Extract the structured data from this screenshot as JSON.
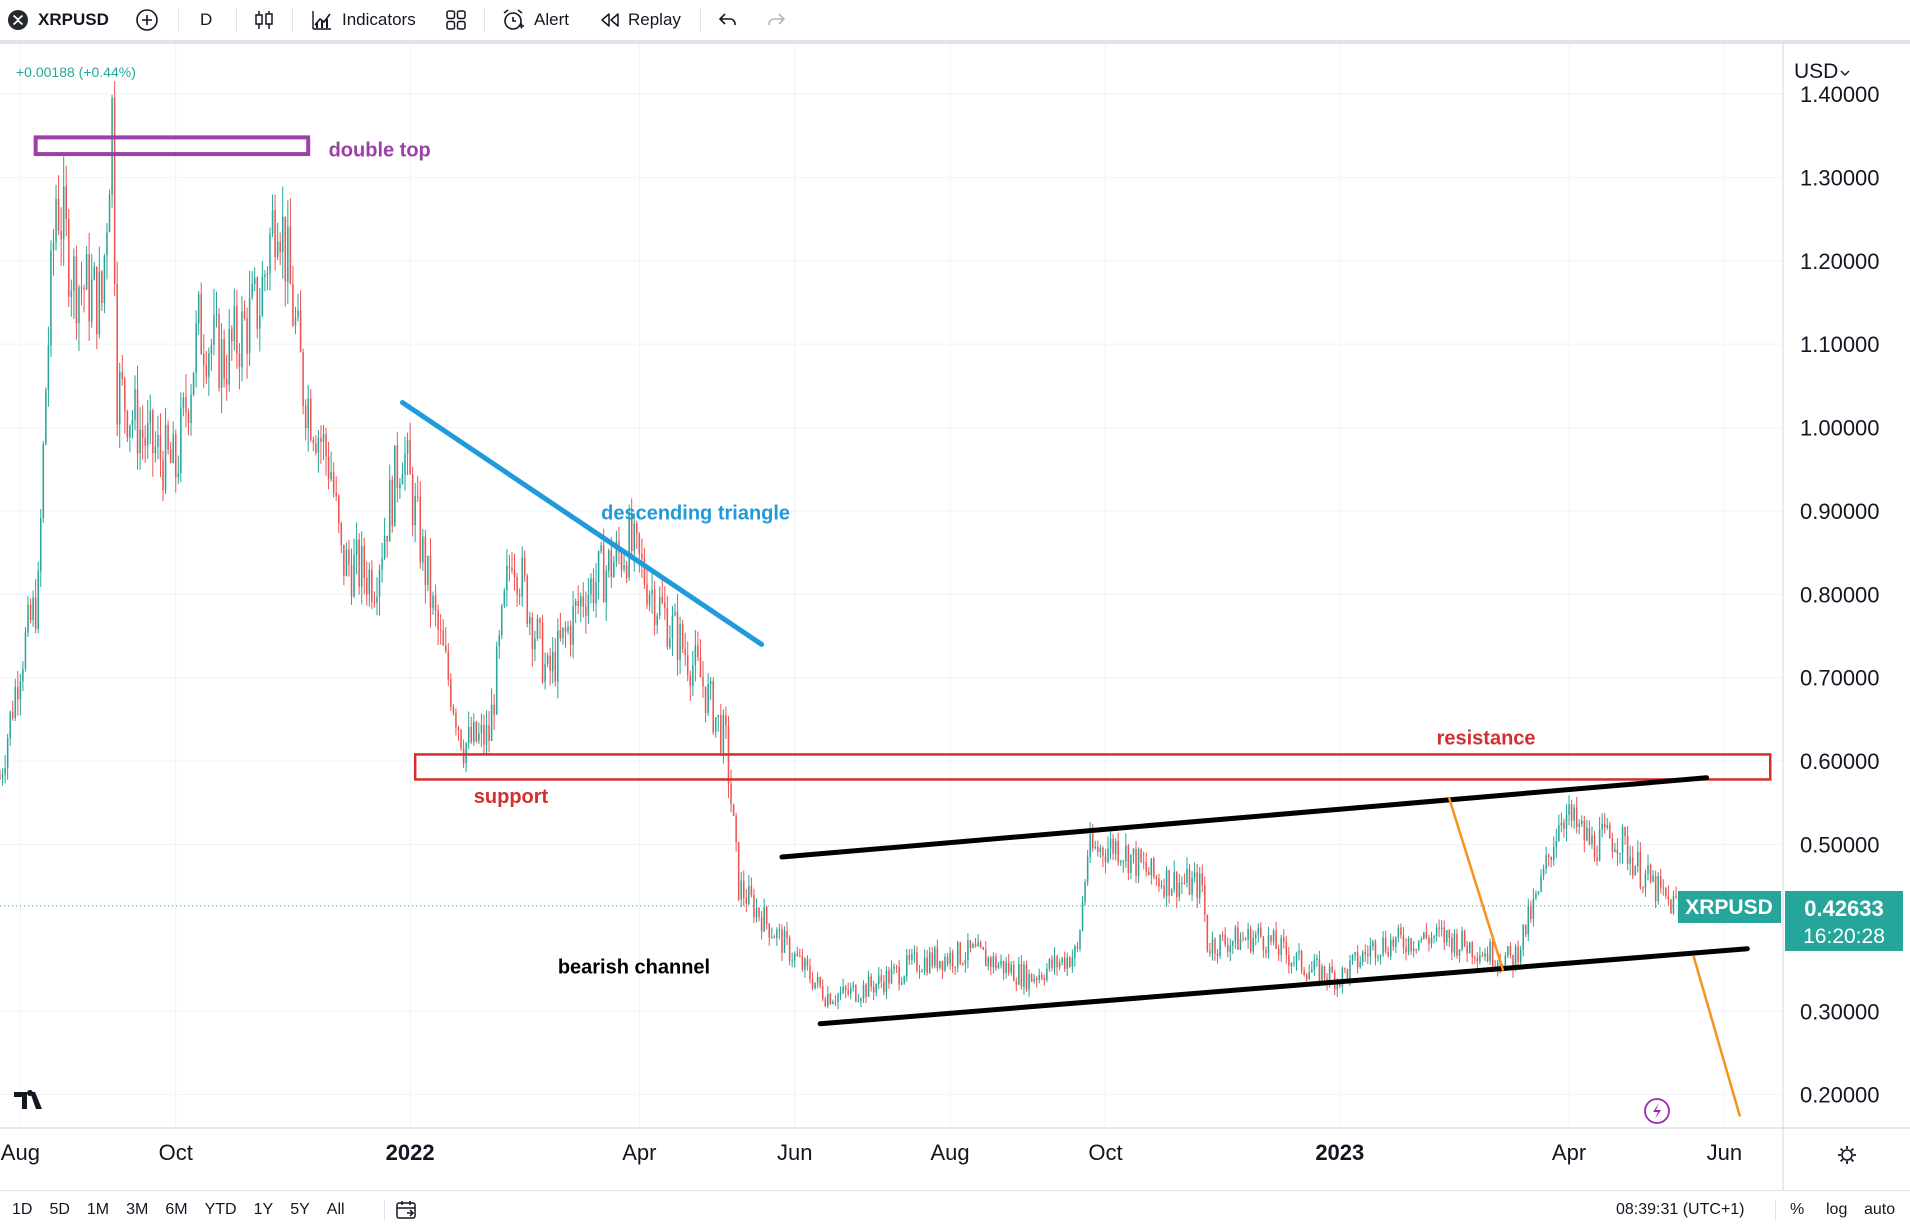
{
  "toolbar": {
    "symbol": "XRPUSD",
    "interval": "D",
    "indicators_label": "Indicators",
    "alert_label": "Alert",
    "replay_label": "Replay"
  },
  "legend": {
    "change": "+0.00188 (+0.44%)"
  },
  "currency_label": "USD",
  "bottom_bar": {
    "ranges": [
      "1D",
      "5D",
      "1M",
      "3M",
      "6M",
      "YTD",
      "1Y",
      "5Y",
      "All"
    ],
    "clock": "08:39:31 (UTC+1)",
    "percent_label": "%",
    "log_label": "log",
    "auto_label": "auto"
  },
  "colors": {
    "up": "#26a69a",
    "down": "#ef5350",
    "double_top": "#9c3fa8",
    "triangle": "#1e9bd8",
    "support_resistance": "#d32f2f",
    "channel": "#000000",
    "arrow": "#f7931a",
    "price_tag": "#26a69a"
  },
  "chart_data": {
    "type": "candlestick",
    "symbol": "XRPUSD",
    "currency": "USD",
    "interval": "D",
    "last_price": "0.42633",
    "countdown": "16:20:28",
    "y_range": [
      0.16,
      1.46
    ],
    "y_ticks": [
      "1.40000",
      "1.30000",
      "1.20000",
      "1.10000",
      "1.00000",
      "0.90000",
      "0.80000",
      "0.70000",
      "0.60000",
      "0.50000",
      "0.30000",
      "0.20000"
    ],
    "x_range": [
      "2021-07-24",
      "2023-06-24"
    ],
    "x_ticks": [
      {
        "label": "Aug",
        "date": "2021-08-01",
        "bold": false
      },
      {
        "label": "Oct",
        "date": "2021-10-01",
        "bold": false
      },
      {
        "label": "2022",
        "date": "2022-01-01",
        "bold": true
      },
      {
        "label": "Apr",
        "date": "2022-04-01",
        "bold": false
      },
      {
        "label": "Jun",
        "date": "2022-06-01",
        "bold": false
      },
      {
        "label": "Aug",
        "date": "2022-08-01",
        "bold": false
      },
      {
        "label": "Oct",
        "date": "2022-10-01",
        "bold": false
      },
      {
        "label": "2023",
        "date": "2023-01-01",
        "bold": true
      },
      {
        "label": "Apr",
        "date": "2023-04-01",
        "bold": false
      },
      {
        "label": "Jun",
        "date": "2023-06-01",
        "bold": false
      }
    ],
    "price_path": [
      [
        "2021-07-24",
        0.58
      ],
      [
        "2021-08-01",
        0.72
      ],
      [
        "2021-08-08",
        0.8
      ],
      [
        "2021-08-11",
        1.05
      ],
      [
        "2021-08-15",
        1.28
      ],
      [
        "2021-08-22",
        1.18
      ],
      [
        "2021-09-02",
        1.15
      ],
      [
        "2021-09-06",
        1.38
      ],
      [
        "2021-09-08",
        1.05
      ],
      [
        "2021-09-20",
        0.98
      ],
      [
        "2021-10-01",
        0.95
      ],
      [
        "2021-10-10",
        1.12
      ],
      [
        "2021-10-20",
        1.08
      ],
      [
        "2021-11-03",
        1.15
      ],
      [
        "2021-11-10",
        1.28
      ],
      [
        "2021-11-20",
        1.05
      ],
      [
        "2021-12-01",
        0.95
      ],
      [
        "2021-12-05",
        0.84
      ],
      [
        "2021-12-18",
        0.82
      ],
      [
        "2021-12-29",
        0.98
      ],
      [
        "2022-01-10",
        0.78
      ],
      [
        "2022-01-22",
        0.62
      ],
      [
        "2022-02-01",
        0.63
      ],
      [
        "2022-02-10",
        0.86
      ],
      [
        "2022-02-24",
        0.7
      ],
      [
        "2022-03-10",
        0.8
      ],
      [
        "2022-03-28",
        0.86
      ],
      [
        "2022-04-10",
        0.78
      ],
      [
        "2022-04-25",
        0.7
      ],
      [
        "2022-05-05",
        0.62
      ],
      [
        "2022-05-10",
        0.45
      ],
      [
        "2022-05-20",
        0.41
      ],
      [
        "2022-06-13",
        0.32
      ],
      [
        "2022-06-20",
        0.32
      ],
      [
        "2022-07-01",
        0.33
      ],
      [
        "2022-07-20",
        0.36
      ],
      [
        "2022-08-10",
        0.37
      ],
      [
        "2022-09-01",
        0.34
      ],
      [
        "2022-09-20",
        0.37
      ],
      [
        "2022-09-24",
        0.49
      ],
      [
        "2022-10-05",
        0.5
      ],
      [
        "2022-10-20",
        0.46
      ],
      [
        "2022-11-08",
        0.45
      ],
      [
        "2022-11-10",
        0.38
      ],
      [
        "2022-12-01",
        0.39
      ],
      [
        "2022-12-20",
        0.35
      ],
      [
        "2023-01-01",
        0.34
      ],
      [
        "2023-01-15",
        0.38
      ],
      [
        "2023-02-10",
        0.39
      ],
      [
        "2023-03-10",
        0.36
      ],
      [
        "2023-03-20",
        0.44
      ],
      [
        "2023-03-29",
        0.54
      ],
      [
        "2023-04-10",
        0.5
      ],
      [
        "2023-04-20",
        0.51
      ],
      [
        "2023-05-01",
        0.46
      ],
      [
        "2023-05-10",
        0.43
      ],
      [
        "2023-05-17",
        0.42633
      ]
    ],
    "annotations": [
      {
        "type": "rect",
        "label": "double top",
        "x1": "2021-08-07",
        "x2": "2021-11-22",
        "y1": 1.348,
        "y2": 1.328,
        "color": "#9c3fa8",
        "label_at": [
          "2021-11-30",
          1.325
        ]
      },
      {
        "type": "line",
        "label": "descending triangle",
        "x1": "2021-12-29",
        "y1": 1.03,
        "x2": "2022-05-19",
        "y2": 0.74,
        "color": "#1e9bd8",
        "label_at": [
          "2022-03-17",
          0.89
        ]
      },
      {
        "type": "rect",
        "label": "support",
        "x1": "2022-01-03",
        "x2": "2023-06-19",
        "y1": 0.608,
        "y2": 0.578,
        "color": "#d32f2f",
        "label_at": [
          "2022-01-26",
          0.55
        ],
        "label2": "resistance",
        "label2_at": [
          "2023-02-08",
          0.62
        ]
      },
      {
        "type": "line",
        "label": "bearish channel",
        "x1": "2022-05-27",
        "y1": 0.485,
        "x2": "2023-05-25",
        "y2": 0.58,
        "color": "#000000",
        "label_at": [
          "2022-02-28",
          0.345
        ]
      },
      {
        "type": "line",
        "x1": "2022-06-11",
        "y1": 0.285,
        "x2": "2023-06-10",
        "y2": 0.375,
        "color": "#000000"
      },
      {
        "type": "line",
        "x1": "2023-02-13",
        "y1": 0.555,
        "x2": "2023-03-06",
        "y2": 0.35,
        "color": "#f7931a"
      },
      {
        "type": "line",
        "x1": "2023-05-20",
        "y1": 0.365,
        "x2": "2023-06-07",
        "y2": 0.175,
        "color": "#f7931a"
      }
    ]
  }
}
